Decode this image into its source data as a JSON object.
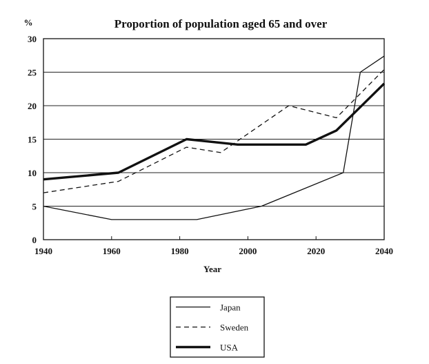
{
  "chart_data": {
    "type": "line",
    "title": "Proportion of population aged 65 and over",
    "xlabel": "Year",
    "ylabel": "%",
    "xlim": [
      1940,
      2040
    ],
    "ylim": [
      0,
      30
    ],
    "xticks": [
      "1940",
      "1960",
      "1980",
      "2000",
      "2020",
      "2040"
    ],
    "yticks": [
      "0",
      "5",
      "10",
      "15",
      "20",
      "25",
      "30"
    ],
    "grid": "horizontal",
    "legend_position": "bottom-center",
    "series": [
      {
        "name": "Japan",
        "style": "thin-solid",
        "x": [
          1940,
          1960,
          1985,
          2004,
          2028,
          2033,
          2040
        ],
        "y": [
          5,
          3,
          3,
          5,
          10,
          25,
          27.4
        ]
      },
      {
        "name": "Sweden",
        "style": "dashed",
        "x": [
          1940,
          1962,
          1982,
          1992,
          2012,
          2026,
          2040
        ],
        "y": [
          7,
          8.7,
          13.8,
          13,
          20,
          18.2,
          25.4
        ]
      },
      {
        "name": "USA",
        "style": "thick-solid",
        "x": [
          1940,
          1962,
          1982,
          1997,
          2017,
          2026,
          2040
        ],
        "y": [
          9,
          10,
          15,
          14.2,
          14.2,
          16.3,
          23.3
        ]
      }
    ]
  }
}
